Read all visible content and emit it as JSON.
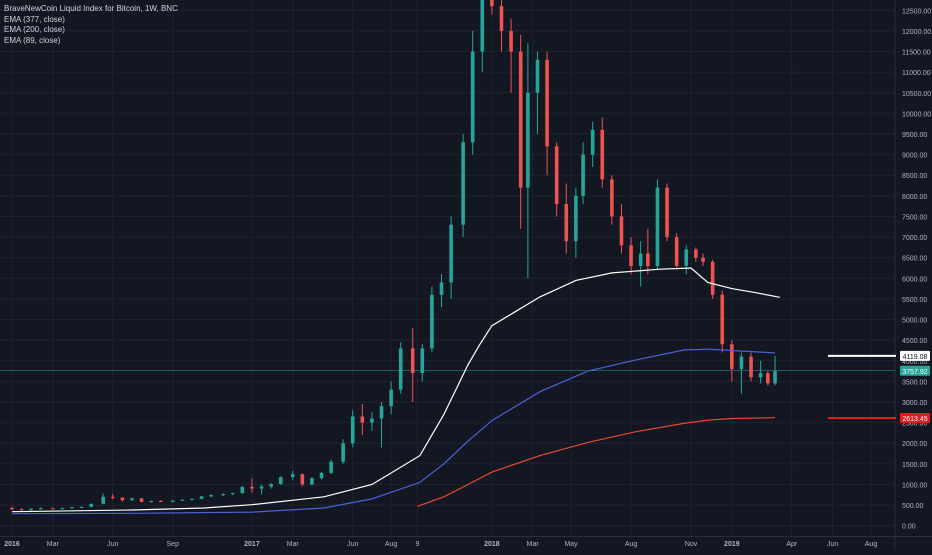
{
  "chart_data": {
    "type": "candlestick",
    "title": "BraveNewCoin Liquid Index for Bitcoin, 1W, BNC",
    "indicators": [
      {
        "name": "EMA (377, close)",
        "color": "#ffffff"
      },
      {
        "name": "EMA (200, close)",
        "color": "#4a63d8"
      },
      {
        "name": "EMA (89, close)",
        "color": "#e8473c"
      }
    ],
    "colors": {
      "up": "#26a69a",
      "down": "#ef5350",
      "background": "#131722",
      "grid": "#1f2330"
    },
    "ylim": [
      -250,
      12750
    ],
    "y_ticks": [
      "0.00",
      "500.00",
      "1000.00",
      "1500.00",
      "2000.00",
      "2500.00",
      "3000.00",
      "3500.00",
      "4000.00",
      "4500.00",
      "5000.00",
      "5500.00",
      "6000.00",
      "6500.00",
      "7000.00",
      "7500.00",
      "8000.00",
      "8500.00",
      "9000.00",
      "9500.00",
      "10000.00",
      "10500.00",
      "11000.00",
      "11500.00",
      "12000.00",
      "12500.00"
    ],
    "x_ticks": [
      {
        "label": "2016",
        "t": 2016.0
      },
      {
        "label": "Mar",
        "t": 2016.17
      },
      {
        "label": "Jun",
        "t": 2016.42
      },
      {
        "label": "Sep",
        "t": 2016.67
      },
      {
        "label": "2017",
        "t": 2017.0
      },
      {
        "label": "Mar",
        "t": 2017.17
      },
      {
        "label": "Jun",
        "t": 2017.42
      },
      {
        "label": "Aug",
        "t": 2017.58
      },
      {
        "label": "9",
        "t": 2017.69
      },
      {
        "label": "2018",
        "t": 2018.0
      },
      {
        "label": "Mar",
        "t": 2018.17
      },
      {
        "label": "May",
        "t": 2018.33
      },
      {
        "label": "Aug",
        "t": 2018.58
      },
      {
        "label": "Nov",
        "t": 2018.83
      },
      {
        "label": "2019",
        "t": 2019.0
      },
      {
        "label": "Apr",
        "t": 2019.25
      },
      {
        "label": "Jun",
        "t": 2019.42
      },
      {
        "label": "Aug",
        "t": 2019.58
      }
    ],
    "xlim": [
      2015.95,
      2019.68
    ],
    "price_labels": [
      {
        "text": "4119.08",
        "value": 4119.08,
        "bg": "#ffffff",
        "fg": "#131722",
        "line_color": "#ffffff"
      },
      {
        "text": "3757.92",
        "value": 3757.92,
        "bg": "#26a69a",
        "fg": "#ffffff",
        "line_color": "#26a69a"
      },
      {
        "text": "2613.45",
        "value": 2613.45,
        "bg": "#e41b1b",
        "fg": "#ffffff",
        "line_color": "#e41b1b"
      }
    ],
    "ema_377": {
      "t": [
        2016.0,
        2016.5,
        2016.8,
        2017.0,
        2017.3,
        2017.5,
        2017.7,
        2017.8,
        2017.9,
        2017.95,
        2018.0,
        2018.1,
        2018.2,
        2018.35,
        2018.5,
        2018.7,
        2018.83,
        2018.9,
        2019.0,
        2019.1,
        2019.2
      ],
      "v": [
        340,
        380,
        430,
        510,
        700,
        1000,
        1700,
        2700,
        3900,
        4400,
        4850,
        5200,
        5550,
        5950,
        6130,
        6220,
        6250,
        5900,
        5750,
        5650,
        5540
      ]
    },
    "ema_200": {
      "t": [
        2016.0,
        2016.5,
        2017.0,
        2017.3,
        2017.5,
        2017.7,
        2017.8,
        2017.9,
        2018.0,
        2018.2,
        2018.4,
        2018.6,
        2018.8,
        2018.9,
        2019.0,
        2019.18
      ],
      "v": [
        290,
        300,
        330,
        430,
        650,
        1050,
        1500,
        2050,
        2550,
        3250,
        3750,
        4020,
        4260,
        4280,
        4250,
        4190
      ]
    },
    "ema_89": {
      "t": [
        2017.69,
        2017.8,
        2017.9,
        2018.0,
        2018.2,
        2018.4,
        2018.6,
        2018.8,
        2018.9,
        2019.0,
        2019.18
      ],
      "v": [
        470,
        700,
        1000,
        1300,
        1700,
        2020,
        2280,
        2480,
        2560,
        2600,
        2620
      ]
    },
    "candles": [
      {
        "t": 2016.0,
        "o": 430,
        "h": 460,
        "l": 380,
        "c": 400
      },
      {
        "t": 2016.04,
        "o": 400,
        "h": 420,
        "l": 360,
        "c": 380
      },
      {
        "t": 2016.08,
        "o": 380,
        "h": 420,
        "l": 370,
        "c": 410
      },
      {
        "t": 2016.12,
        "o": 410,
        "h": 440,
        "l": 400,
        "c": 420
      },
      {
        "t": 2016.17,
        "o": 420,
        "h": 440,
        "l": 400,
        "c": 415
      },
      {
        "t": 2016.21,
        "o": 415,
        "h": 440,
        "l": 405,
        "c": 425
      },
      {
        "t": 2016.25,
        "o": 425,
        "h": 455,
        "l": 420,
        "c": 450
      },
      {
        "t": 2016.29,
        "o": 450,
        "h": 470,
        "l": 430,
        "c": 455
      },
      {
        "t": 2016.33,
        "o": 455,
        "h": 540,
        "l": 450,
        "c": 530
      },
      {
        "t": 2016.38,
        "o": 530,
        "h": 780,
        "l": 520,
        "c": 700
      },
      {
        "t": 2016.42,
        "o": 700,
        "h": 770,
        "l": 640,
        "c": 680
      },
      {
        "t": 2016.46,
        "o": 680,
        "h": 690,
        "l": 580,
        "c": 620
      },
      {
        "t": 2016.5,
        "o": 620,
        "h": 680,
        "l": 600,
        "c": 660
      },
      {
        "t": 2016.54,
        "o": 660,
        "h": 670,
        "l": 560,
        "c": 580
      },
      {
        "t": 2016.58,
        "o": 580,
        "h": 610,
        "l": 560,
        "c": 600
      },
      {
        "t": 2016.62,
        "o": 600,
        "h": 620,
        "l": 570,
        "c": 580
      },
      {
        "t": 2016.67,
        "o": 580,
        "h": 620,
        "l": 570,
        "c": 610
      },
      {
        "t": 2016.71,
        "o": 610,
        "h": 640,
        "l": 600,
        "c": 630
      },
      {
        "t": 2016.75,
        "o": 630,
        "h": 660,
        "l": 620,
        "c": 650
      },
      {
        "t": 2016.79,
        "o": 650,
        "h": 720,
        "l": 640,
        "c": 710
      },
      {
        "t": 2016.83,
        "o": 710,
        "h": 760,
        "l": 690,
        "c": 740
      },
      {
        "t": 2016.88,
        "o": 740,
        "h": 790,
        "l": 720,
        "c": 770
      },
      {
        "t": 2016.92,
        "o": 770,
        "h": 800,
        "l": 740,
        "c": 790
      },
      {
        "t": 2016.96,
        "o": 790,
        "h": 960,
        "l": 780,
        "c": 940
      },
      {
        "t": 2017.0,
        "o": 940,
        "h": 1150,
        "l": 800,
        "c": 900
      },
      {
        "t": 2017.04,
        "o": 900,
        "h": 1000,
        "l": 760,
        "c": 950
      },
      {
        "t": 2017.08,
        "o": 950,
        "h": 1040,
        "l": 900,
        "c": 1010
      },
      {
        "t": 2017.12,
        "o": 1010,
        "h": 1200,
        "l": 990,
        "c": 1180
      },
      {
        "t": 2017.17,
        "o": 1180,
        "h": 1330,
        "l": 1100,
        "c": 1250
      },
      {
        "t": 2017.21,
        "o": 1250,
        "h": 1270,
        "l": 950,
        "c": 1000
      },
      {
        "t": 2017.25,
        "o": 1000,
        "h": 1180,
        "l": 980,
        "c": 1150
      },
      {
        "t": 2017.29,
        "o": 1150,
        "h": 1300,
        "l": 1120,
        "c": 1280
      },
      {
        "t": 2017.33,
        "o": 1280,
        "h": 1600,
        "l": 1250,
        "c": 1550
      },
      {
        "t": 2017.38,
        "o": 1550,
        "h": 2100,
        "l": 1500,
        "c": 2000
      },
      {
        "t": 2017.42,
        "o": 2000,
        "h": 2800,
        "l": 1900,
        "c": 2650
      },
      {
        "t": 2017.46,
        "o": 2650,
        "h": 2950,
        "l": 2200,
        "c": 2500
      },
      {
        "t": 2017.5,
        "o": 2500,
        "h": 2750,
        "l": 2300,
        "c": 2600
      },
      {
        "t": 2017.54,
        "o": 2600,
        "h": 3000,
        "l": 1900,
        "c": 2900
      },
      {
        "t": 2017.58,
        "o": 2900,
        "h": 3500,
        "l": 2700,
        "c": 3300
      },
      {
        "t": 2017.62,
        "o": 3300,
        "h": 4450,
        "l": 3200,
        "c": 4300
      },
      {
        "t": 2017.67,
        "o": 4300,
        "h": 4800,
        "l": 3000,
        "c": 3700
      },
      {
        "t": 2017.71,
        "o": 3700,
        "h": 4400,
        "l": 3500,
        "c": 4300
      },
      {
        "t": 2017.75,
        "o": 4300,
        "h": 5800,
        "l": 4200,
        "c": 5600
      },
      {
        "t": 2017.79,
        "o": 5600,
        "h": 6100,
        "l": 5300,
        "c": 5900
      },
      {
        "t": 2017.83,
        "o": 5900,
        "h": 7500,
        "l": 5500,
        "c": 7300
      },
      {
        "t": 2017.88,
        "o": 7300,
        "h": 9500,
        "l": 7000,
        "c": 9300
      },
      {
        "t": 2017.92,
        "o": 9300,
        "h": 12000,
        "l": 9000,
        "c": 11500
      },
      {
        "t": 2017.96,
        "o": 11500,
        "h": 12800,
        "l": 11000,
        "c": 12800
      },
      {
        "t": 2018.0,
        "o": 12800,
        "h": 12800,
        "l": 12400,
        "c": 12600
      },
      {
        "t": 2018.04,
        "o": 12600,
        "h": 12800,
        "l": 11500,
        "c": 12000
      },
      {
        "t": 2018.08,
        "o": 12000,
        "h": 12300,
        "l": 10500,
        "c": 11500
      },
      {
        "t": 2018.12,
        "o": 11500,
        "h": 11900,
        "l": 7200,
        "c": 8200
      },
      {
        "t": 2018.15,
        "o": 8200,
        "h": 11700,
        "l": 6000,
        "c": 10500
      },
      {
        "t": 2018.19,
        "o": 10500,
        "h": 11500,
        "l": 9500,
        "c": 11300
      },
      {
        "t": 2018.23,
        "o": 11300,
        "h": 11500,
        "l": 8500,
        "c": 9200
      },
      {
        "t": 2018.27,
        "o": 9200,
        "h": 9300,
        "l": 7500,
        "c": 7800
      },
      {
        "t": 2018.31,
        "o": 7800,
        "h": 8300,
        "l": 6600,
        "c": 6900
      },
      {
        "t": 2018.35,
        "o": 6900,
        "h": 8200,
        "l": 6500,
        "c": 8000
      },
      {
        "t": 2018.38,
        "o": 8000,
        "h": 9300,
        "l": 7800,
        "c": 9000
      },
      {
        "t": 2018.42,
        "o": 9000,
        "h": 9800,
        "l": 8700,
        "c": 9600
      },
      {
        "t": 2018.46,
        "o": 9600,
        "h": 9900,
        "l": 8200,
        "c": 8400
      },
      {
        "t": 2018.5,
        "o": 8400,
        "h": 8500,
        "l": 7300,
        "c": 7500
      },
      {
        "t": 2018.54,
        "o": 7500,
        "h": 7800,
        "l": 6600,
        "c": 6800
      },
      {
        "t": 2018.58,
        "o": 6800,
        "h": 7000,
        "l": 6100,
        "c": 6300
      },
      {
        "t": 2018.62,
        "o": 6300,
        "h": 6900,
        "l": 5800,
        "c": 6600
      },
      {
        "t": 2018.65,
        "o": 6600,
        "h": 7200,
        "l": 6100,
        "c": 6300
      },
      {
        "t": 2018.69,
        "o": 6300,
        "h": 8400,
        "l": 6200,
        "c": 8200
      },
      {
        "t": 2018.73,
        "o": 8200,
        "h": 8300,
        "l": 6900,
        "c": 7000
      },
      {
        "t": 2018.77,
        "o": 7000,
        "h": 7100,
        "l": 6200,
        "c": 6300
      },
      {
        "t": 2018.81,
        "o": 6300,
        "h": 6800,
        "l": 6100,
        "c": 6700
      },
      {
        "t": 2018.85,
        "o": 6700,
        "h": 6750,
        "l": 6400,
        "c": 6500
      },
      {
        "t": 2018.88,
        "o": 6500,
        "h": 6600,
        "l": 6300,
        "c": 6400
      },
      {
        "t": 2018.92,
        "o": 6400,
        "h": 6450,
        "l": 5500,
        "c": 5600
      },
      {
        "t": 2018.96,
        "o": 5600,
        "h": 5700,
        "l": 4200,
        "c": 4400
      },
      {
        "t": 2019.0,
        "o": 4400,
        "h": 4500,
        "l": 3500,
        "c": 3800
      },
      {
        "t": 2019.04,
        "o": 3800,
        "h": 4200,
        "l": 3200,
        "c": 4100
      },
      {
        "t": 2019.08,
        "o": 4100,
        "h": 4200,
        "l": 3500,
        "c": 3600
      },
      {
        "t": 2019.12,
        "o": 3600,
        "h": 4000,
        "l": 3450,
        "c": 3700
      },
      {
        "t": 2019.15,
        "o": 3700,
        "h": 3750,
        "l": 3400,
        "c": 3450
      },
      {
        "t": 2019.18,
        "o": 3450,
        "h": 4119,
        "l": 3400,
        "c": 3758
      }
    ]
  }
}
